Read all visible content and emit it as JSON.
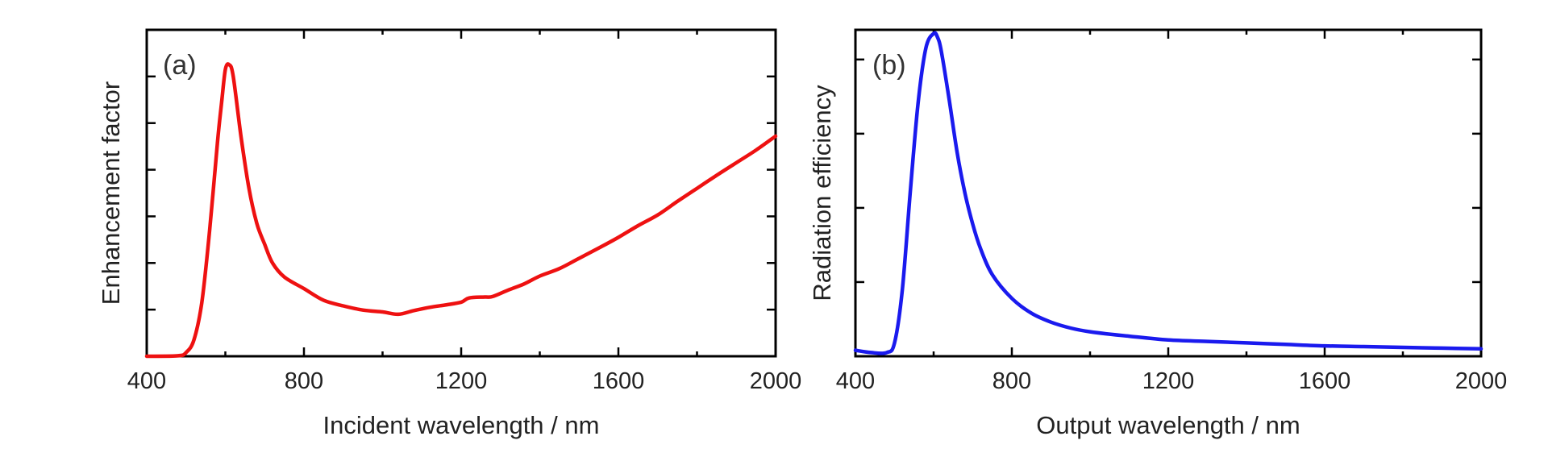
{
  "chart_data": [
    {
      "type": "line",
      "panel_label": "(a)",
      "xlabel": "Incident wavelength / nm",
      "ylabel": "Enhancement factor",
      "xlim": [
        400,
        2000
      ],
      "ylim": [
        0,
        7
      ],
      "x_ticks": [
        400,
        800,
        1200,
        1600,
        2000
      ],
      "y_ticks_labeled": false,
      "y_tick_count": 8,
      "grid": false,
      "series": [
        {
          "color": "#ee1111",
          "x": [
            400,
            480,
            500,
            520,
            540,
            560,
            580,
            590,
            600,
            610,
            620,
            640,
            660,
            680,
            700,
            720,
            750,
            800,
            850,
            900,
            950,
            1000,
            1040,
            1080,
            1120,
            1160,
            1200,
            1220,
            1260,
            1280,
            1320,
            1360,
            1400,
            1450,
            1500,
            1550,
            1600,
            1650,
            1700,
            1750,
            1800,
            1850,
            1900,
            1950,
            2000
          ],
          "y": [
            0.0,
            0.01,
            0.08,
            0.35,
            1.15,
            2.7,
            4.6,
            5.4,
            6.15,
            6.25,
            6.0,
            4.7,
            3.6,
            2.85,
            2.4,
            2.0,
            1.7,
            1.45,
            1.2,
            1.08,
            0.99,
            0.95,
            0.9,
            0.98,
            1.05,
            1.1,
            1.16,
            1.25,
            1.27,
            1.28,
            1.42,
            1.55,
            1.72,
            1.88,
            2.1,
            2.32,
            2.55,
            2.8,
            3.03,
            3.32,
            3.6,
            3.88,
            4.15,
            4.42,
            4.72
          ]
        }
      ]
    },
    {
      "type": "line",
      "panel_label": "(b)",
      "xlabel": "Output wavelength / nm",
      "ylabel": "Radiation efficiency",
      "xlim": [
        400,
        2000
      ],
      "ylim": [
        0,
        4.4
      ],
      "x_ticks": [
        400,
        800,
        1200,
        1600,
        2000
      ],
      "y_ticks_labeled": false,
      "y_tick_count": 5,
      "grid": false,
      "series": [
        {
          "color": "#1a1aee",
          "x": [
            400,
            440,
            480,
            500,
            520,
            540,
            560,
            580,
            600,
            610,
            620,
            640,
            660,
            680,
            700,
            720,
            750,
            800,
            850,
            900,
            950,
            1000,
            1100,
            1200,
            1300,
            1400,
            1500,
            1600,
            1700,
            1800,
            1900,
            2000
          ],
          "y": [
            0.08,
            0.05,
            0.05,
            0.18,
            0.9,
            2.2,
            3.4,
            4.15,
            4.35,
            4.3,
            4.1,
            3.45,
            2.75,
            2.2,
            1.78,
            1.45,
            1.1,
            0.78,
            0.58,
            0.46,
            0.38,
            0.33,
            0.27,
            0.22,
            0.2,
            0.18,
            0.16,
            0.14,
            0.13,
            0.12,
            0.11,
            0.1
          ]
        }
      ]
    }
  ]
}
